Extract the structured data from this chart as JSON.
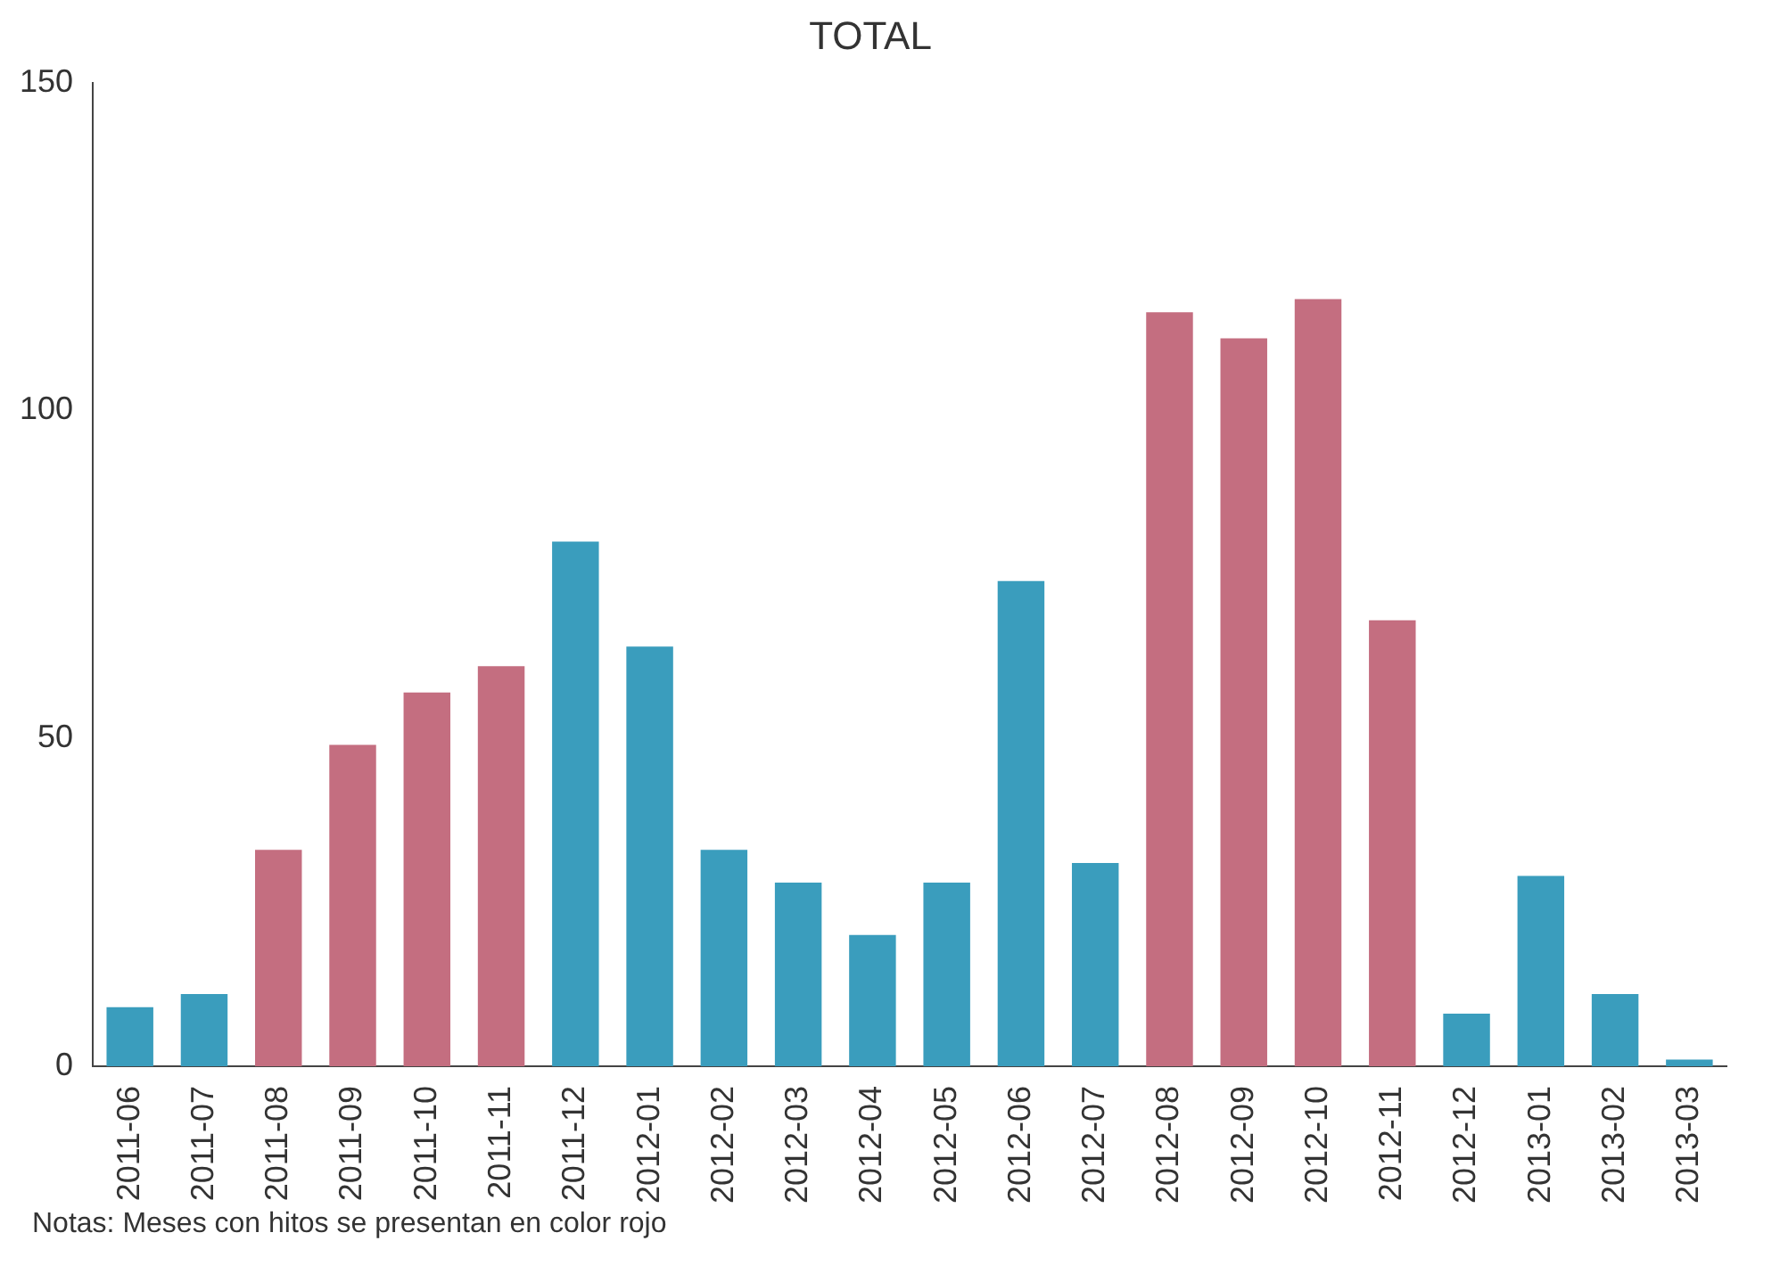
{
  "chart_data": {
    "type": "bar",
    "title": "TOTAL",
    "categories": [
      "2011-06",
      "2011-07",
      "2011-08",
      "2011-09",
      "2011-10",
      "2011-11",
      "2011-12",
      "2012-01",
      "2012-02",
      "2012-03",
      "2012-04",
      "2012-05",
      "2012-06",
      "2012-07",
      "2012-08",
      "2012-09",
      "2012-10",
      "2012-11",
      "2012-12",
      "2013-01",
      "2013-02",
      "2013-03"
    ],
    "values": [
      9,
      11,
      33,
      49,
      57,
      61,
      80,
      64,
      33,
      28,
      20,
      28,
      74,
      31,
      115,
      111,
      117,
      68,
      8,
      29,
      11,
      1
    ],
    "colors": [
      "#3a9dbd",
      "#3a9dbd",
      "#c46e80",
      "#c46e80",
      "#c46e80",
      "#c46e80",
      "#3a9dbd",
      "#3a9dbd",
      "#3a9dbd",
      "#3a9dbd",
      "#3a9dbd",
      "#3a9dbd",
      "#3a9dbd",
      "#3a9dbd",
      "#c46e80",
      "#c46e80",
      "#c46e80",
      "#c46e80",
      "#3a9dbd",
      "#3a9dbd",
      "#3a9dbd",
      "#3a9dbd"
    ],
    "ylim": [
      0,
      150
    ],
    "yticks": [
      0,
      50,
      100,
      150
    ],
    "grid": false,
    "legend": false,
    "annotations": [
      "Notas: Meses con hitos se presentan en color rojo"
    ]
  }
}
